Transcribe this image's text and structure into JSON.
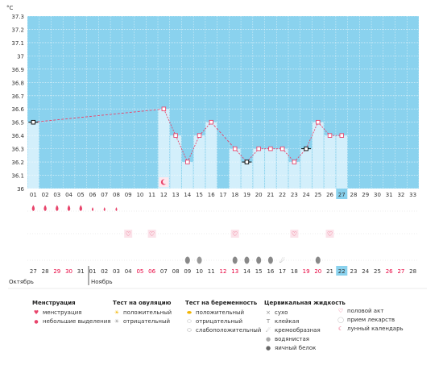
{
  "unit_label": "°C",
  "y_ticks": [
    "37.3",
    "37.2",
    "37.1",
    "37",
    "36.9",
    "36.8",
    "36.7",
    "36.6",
    "36.5",
    "36.4",
    "36.3",
    "36.2",
    "36.1",
    "36"
  ],
  "cycle_days": [
    "01",
    "02",
    "03",
    "04",
    "05",
    "06",
    "07",
    "08",
    "09",
    "10",
    "11",
    "12",
    "13",
    "14",
    "15",
    "16",
    "17",
    "18",
    "19",
    "20",
    "21",
    "22",
    "23",
    "24",
    "25",
    "26",
    "27",
    "28",
    "29",
    "30",
    "31",
    "32",
    "33"
  ],
  "current_cycle_day_index": 26,
  "date_row": [
    {
      "d": "27",
      "red": false
    },
    {
      "d": "28",
      "red": false
    },
    {
      "d": "29",
      "red": true
    },
    {
      "d": "30",
      "red": true
    },
    {
      "d": "31",
      "red": false
    },
    {
      "d": "01",
      "red": false
    },
    {
      "d": "02",
      "red": false
    },
    {
      "d": "03",
      "red": false
    },
    {
      "d": "04",
      "red": false
    },
    {
      "d": "05",
      "red": true
    },
    {
      "d": "06",
      "red": true
    },
    {
      "d": "07",
      "red": false
    },
    {
      "d": "08",
      "red": false
    },
    {
      "d": "09",
      "red": false
    },
    {
      "d": "10",
      "red": false
    },
    {
      "d": "11",
      "red": false
    },
    {
      "d": "12",
      "red": true
    },
    {
      "d": "13",
      "red": true
    },
    {
      "d": "14",
      "red": false
    },
    {
      "d": "15",
      "red": false
    },
    {
      "d": "16",
      "red": false
    },
    {
      "d": "17",
      "red": false
    },
    {
      "d": "18",
      "red": false
    },
    {
      "d": "19",
      "red": true
    },
    {
      "d": "20",
      "red": true
    },
    {
      "d": "21",
      "red": false
    },
    {
      "d": "22",
      "red": false
    },
    {
      "d": "23",
      "red": false
    },
    {
      "d": "24",
      "red": false
    },
    {
      "d": "25",
      "red": false
    },
    {
      "d": "26",
      "red": true
    },
    {
      "d": "27",
      "red": true
    },
    {
      "d": "28",
      "red": false
    }
  ],
  "month_labels": {
    "prev": "Октябрь",
    "next": "Ноябрь"
  },
  "chart_data": {
    "type": "line",
    "title": "",
    "unit": "°C",
    "ylim": [
      36.0,
      37.3
    ],
    "x": [
      "01",
      "02",
      "03",
      "04",
      "05",
      "06",
      "07",
      "08",
      "09",
      "10",
      "11",
      "12",
      "13",
      "14",
      "15",
      "16",
      "17",
      "18",
      "19",
      "20",
      "21",
      "22",
      "23",
      "24",
      "25",
      "26",
      "27",
      "28",
      "29",
      "30",
      "31",
      "32",
      "33"
    ],
    "series": [
      {
        "values": [
          36.5,
          null,
          null,
          null,
          null,
          null,
          null,
          null,
          null,
          null,
          null,
          36.6,
          36.4,
          36.2,
          36.4,
          36.5,
          null,
          36.3,
          36.2,
          36.3,
          36.3,
          36.3,
          36.2,
          36.3,
          36.5,
          36.4,
          36.4,
          null,
          null,
          null,
          null,
          null,
          null
        ],
        "excluded_days": [
          "01",
          "19",
          "24"
        ]
      }
    ],
    "cover_line": null
  },
  "symbol_rows": {
    "menstruation": [
      {
        "day": "01",
        "type": "heavy"
      },
      {
        "day": "02",
        "type": "heavy"
      },
      {
        "day": "03",
        "type": "heavy"
      },
      {
        "day": "04",
        "type": "heavy"
      },
      {
        "day": "05",
        "type": "heavy"
      },
      {
        "day": "06",
        "type": "spotting"
      },
      {
        "day": "07",
        "type": "spotting"
      },
      {
        "day": "08",
        "type": "spotting"
      }
    ],
    "intercourse": [
      "09",
      "11",
      "18",
      "23",
      "26"
    ],
    "mucus": [
      {
        "day": "14",
        "type": "drop"
      },
      {
        "day": "15",
        "type": "sticky-drop"
      },
      {
        "day": "18",
        "type": "drop"
      },
      {
        "day": "19",
        "type": "drop"
      },
      {
        "day": "20",
        "type": "drop"
      },
      {
        "day": "21",
        "type": "drop"
      },
      {
        "day": "22",
        "type": "creamy"
      },
      {
        "day": "25",
        "type": "drop"
      }
    ],
    "lunar": [
      "12"
    ]
  },
  "legend": {
    "menstruation": {
      "head": "Менструация",
      "items": [
        {
          "icon": "drop-red",
          "label": "менструация"
        },
        {
          "icon": "drop-small",
          "label": "небольшие выделения"
        }
      ]
    },
    "ovulation": {
      "head": "Тест на овуляцию",
      "items": [
        {
          "icon": "sun-yellow",
          "label": "положительный"
        },
        {
          "icon": "sun-gray",
          "label": "отрицательный"
        }
      ]
    },
    "pregnancy": {
      "head": "Тест на беременность",
      "items": [
        {
          "icon": "oval-yellow",
          "label": "положительный"
        },
        {
          "icon": "oval-white",
          "label": "отрицательный"
        },
        {
          "icon": "oval-half",
          "label": "слабоположительный"
        }
      ]
    },
    "mucus": {
      "head": "Цервикальная жидкость",
      "items": [
        {
          "icon": "x",
          "label": "сухо"
        },
        {
          "icon": "t",
          "label": "клейкая"
        },
        {
          "icon": "creamy",
          "label": "кремообразная"
        },
        {
          "icon": "drop-gray",
          "label": "водянистая"
        },
        {
          "icon": "drop-dark",
          "label": "яичный белок"
        }
      ]
    },
    "other": {
      "items": [
        {
          "icon": "heart",
          "label": "половой акт"
        },
        {
          "icon": "pill",
          "label": "прием лекарств"
        },
        {
          "icon": "moon",
          "label": "лунный календарь"
        }
      ]
    }
  },
  "colors": {
    "sky": "#8ad2ee",
    "bar": "#d3effb",
    "grid": "#ffffff",
    "line": "#e8446b",
    "today": "#8ad2ee",
    "red_text": "#e8003d"
  }
}
